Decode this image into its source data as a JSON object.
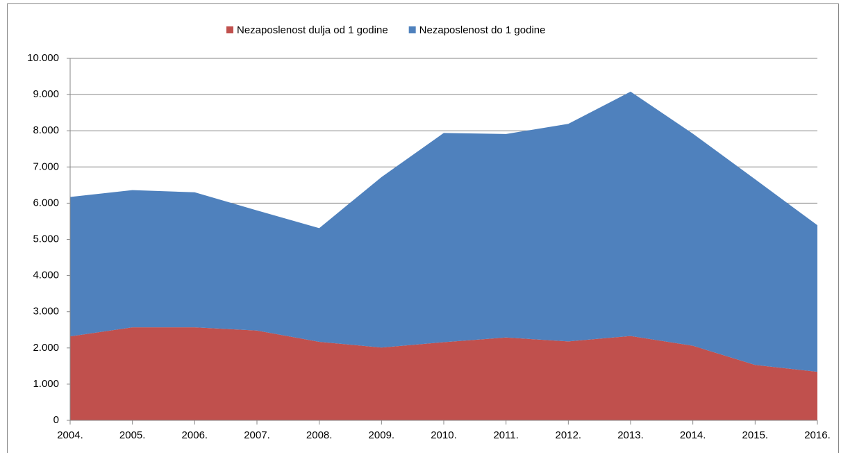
{
  "chart_data": {
    "type": "area",
    "stacked": true,
    "categories": [
      "2004.",
      "2005.",
      "2006.",
      "2007.",
      "2008.",
      "2009.",
      "2010.",
      "2011.",
      "2012.",
      "2013.",
      "2014.",
      "2015.",
      "2016."
    ],
    "series": [
      {
        "name": "Nezaposlenost dulja od 1 godine",
        "color": "#c0504d",
        "values": [
          2320,
          2570,
          2570,
          2480,
          2170,
          2010,
          2160,
          2290,
          2180,
          2330,
          2060,
          1530,
          1340
        ]
      },
      {
        "name": "Nezaposlenost do 1 godine",
        "color": "#4f81bd",
        "values": [
          3850,
          3790,
          3730,
          3320,
          3140,
          4710,
          5780,
          5620,
          6010,
          6750,
          5860,
          5130,
          4050
        ]
      }
    ],
    "ylim": [
      0,
      10000
    ],
    "yticks": [
      0,
      {
        "value": 1000,
        "label": "1.000"
      },
      {
        "value": 2000,
        "label": "2.000"
      },
      {
        "value": 3000,
        "label": "3.000"
      },
      {
        "value": 4000,
        "label": "4.000"
      },
      {
        "value": 5000,
        "label": "5.000"
      },
      {
        "value": 6000,
        "label": "6.000"
      },
      {
        "value": 7000,
        "label": "7.000"
      },
      {
        "value": 8000,
        "label": "8.000"
      },
      {
        "value": 9000,
        "label": "9.000"
      },
      {
        "value": 10000,
        "label": "10.000"
      }
    ],
    "grid": true,
    "legend": "top"
  }
}
